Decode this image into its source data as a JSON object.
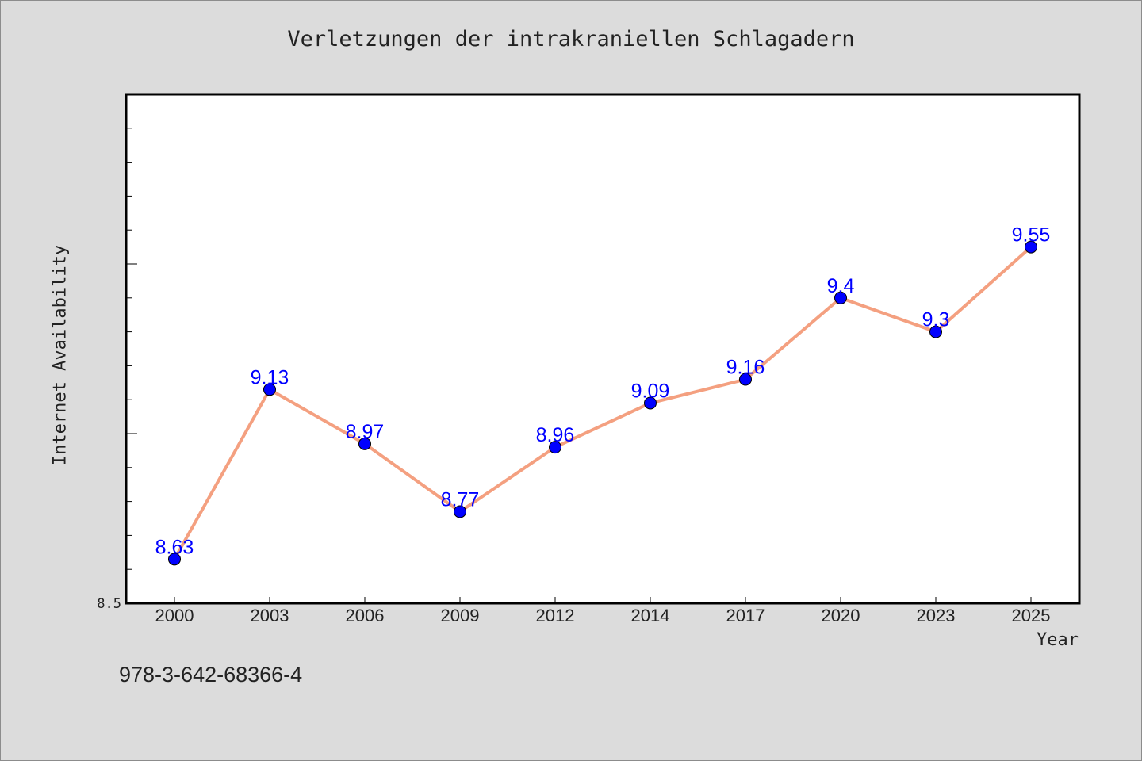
{
  "chart_data": {
    "type": "line",
    "title": "Verletzungen der intrakraniellen Schlagadern",
    "xlabel": "Year",
    "ylabel": "Internet Availability",
    "categories": [
      "2000",
      "2003",
      "2006",
      "2009",
      "2012",
      "2014",
      "2017",
      "2020",
      "2023",
      "2025"
    ],
    "series": [
      {
        "values": [
          8.63,
          9.13,
          8.97,
          8.77,
          8.96,
          9.09,
          9.16,
          9.4,
          9.3,
          9.55
        ],
        "labels": [
          "8.63",
          "9.13",
          "8.97",
          "8.77",
          "8.96",
          "9.09",
          "9.16",
          "9.4",
          "9.3",
          "9.55"
        ],
        "line_color": "#f4a080",
        "marker_color": "#0000ff",
        "label_color": "#0000ff"
      }
    ],
    "ylim": [
      8.5,
      10.0
    ],
    "y_tick_labels": [
      "8.5"
    ],
    "grid": false
  },
  "footnote": "978-3-642-68366-4"
}
